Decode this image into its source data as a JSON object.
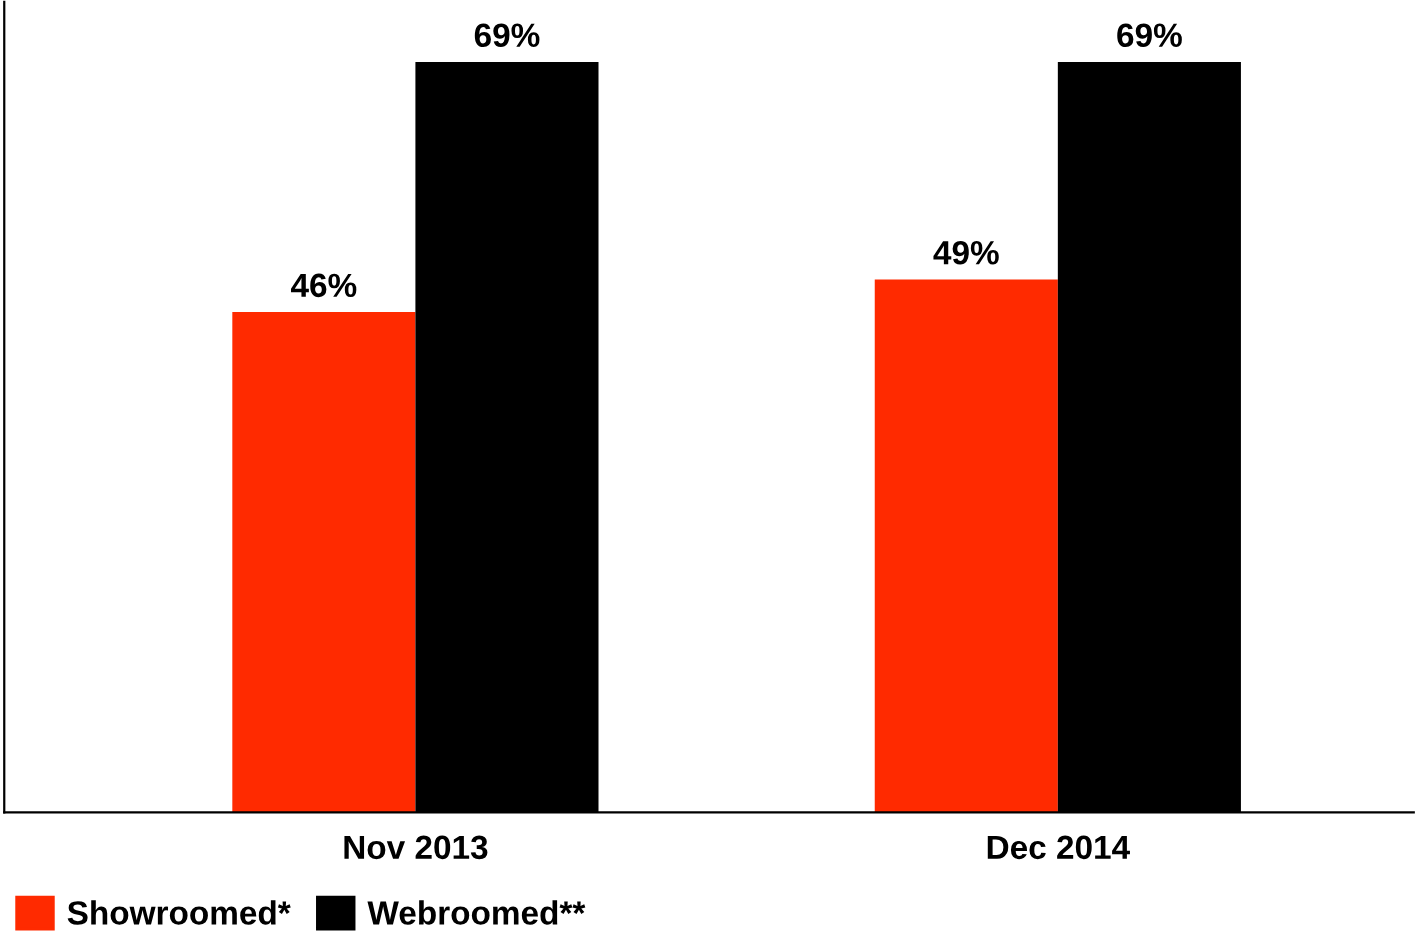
{
  "chart_data": {
    "type": "bar",
    "categories": [
      "Nov 2013",
      "Dec 2014"
    ],
    "series": [
      {
        "name": "Showroomed*",
        "color": "#ff2a00",
        "values": [
          46,
          49
        ],
        "value_labels": [
          "46%",
          "49%"
        ]
      },
      {
        "name": "Webroomed**",
        "color": "#000000",
        "values": [
          69,
          69
        ],
        "value_labels": [
          "69%",
          "69%"
        ]
      }
    ],
    "legend": "bottom left",
    "grid": false
  }
}
